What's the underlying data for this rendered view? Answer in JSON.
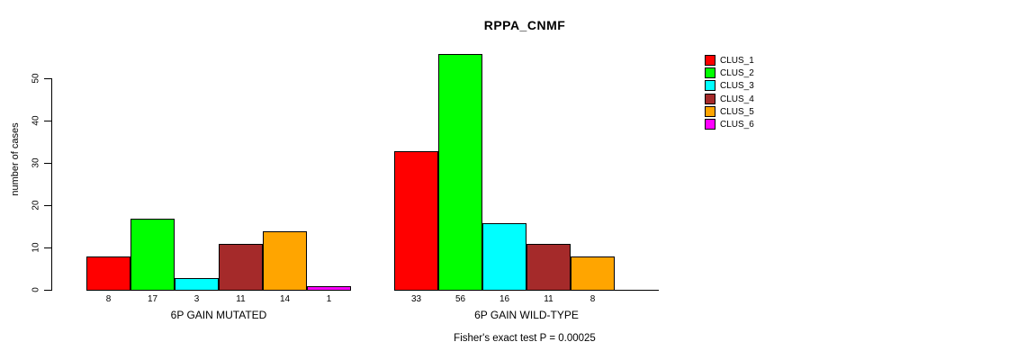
{
  "header": {
    "title": "RPPA_CNMF"
  },
  "footer": {
    "annotation": "Fisher's exact test P = 0.00025"
  },
  "chart_data": {
    "type": "bar",
    "title": "RPPA_CNMF",
    "xlabel": "",
    "ylabel": "number of cases",
    "ylim": [
      0,
      56
    ],
    "yticks": [
      0,
      10,
      20,
      30,
      40,
      50
    ],
    "grid": false,
    "legend_position": "right",
    "categories": [
      "6P GAIN MUTATED",
      "6P GAIN WILD-TYPE"
    ],
    "series": [
      {
        "name": "CLUS_1",
        "color": "#FF0000",
        "values": [
          8,
          33
        ]
      },
      {
        "name": "CLUS_2",
        "color": "#00FF00",
        "values": [
          17,
          56
        ]
      },
      {
        "name": "CLUS_3",
        "color": "#00FFFF",
        "values": [
          3,
          16
        ]
      },
      {
        "name": "CLUS_4",
        "color": "#A52A2A",
        "values": [
          11,
          11
        ]
      },
      {
        "name": "CLUS_5",
        "color": "#FFA500",
        "values": [
          14,
          8
        ]
      },
      {
        "name": "CLUS_6",
        "color": "#FF00FF",
        "values": [
          1,
          0
        ]
      }
    ],
    "bar_value_labels_shown": true,
    "annotation": "Fisher's exact test P = 0.00025",
    "axis_color": "#000000",
    "bar_border_color": "#000000",
    "background_color": "#FFFFFF"
  }
}
